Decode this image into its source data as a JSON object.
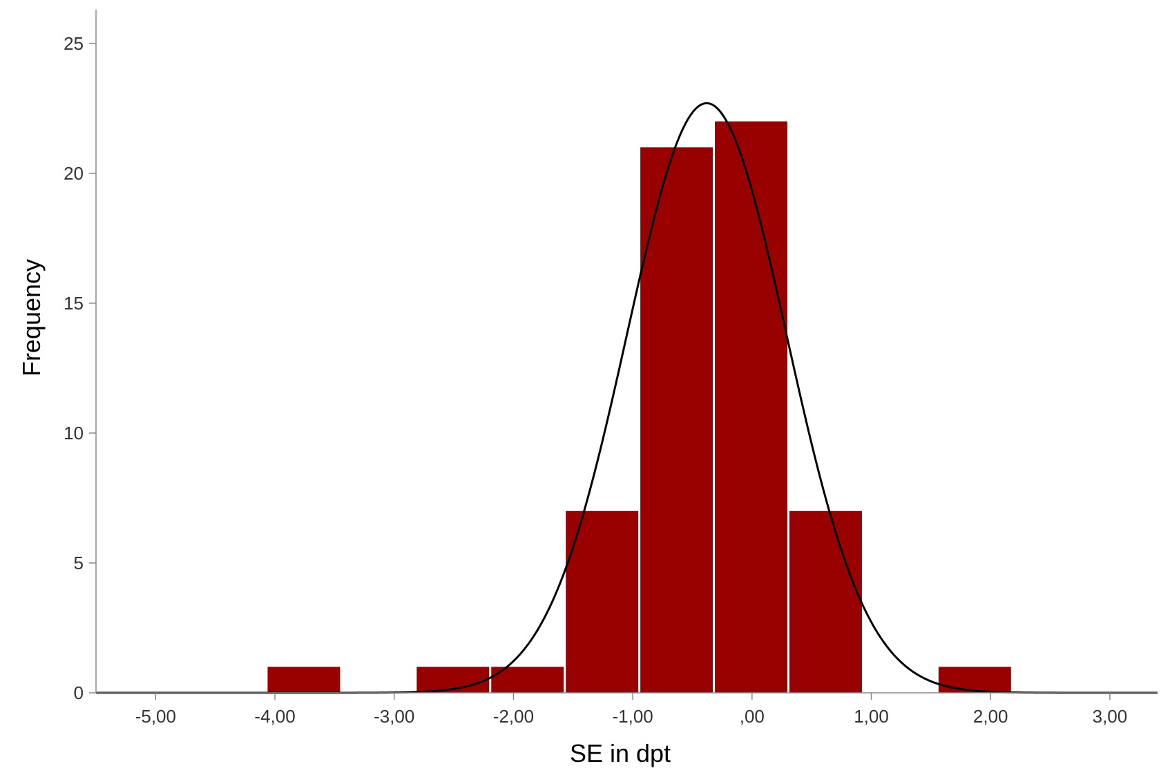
{
  "chart_data": {
    "type": "bar",
    "subtype": "histogram",
    "title": "",
    "xlabel": "SE in dpt",
    "ylabel": "Frequency",
    "xlim": [
      -5.5,
      3.4
    ],
    "ylim": [
      0,
      26.3
    ],
    "x_ticks": [
      {
        "value": -5,
        "label": "-5,00"
      },
      {
        "value": -4,
        "label": "-4,00"
      },
      {
        "value": -3,
        "label": "-3,00"
      },
      {
        "value": -2,
        "label": "-2,00"
      },
      {
        "value": -1,
        "label": "-1,00"
      },
      {
        "value": 0,
        "label": ",00"
      },
      {
        "value": 1,
        "label": "1,00"
      },
      {
        "value": 2,
        "label": "2,00"
      },
      {
        "value": 3,
        "label": "3,00"
      }
    ],
    "y_ticks": [
      {
        "value": 0,
        "label": "0"
      },
      {
        "value": 5,
        "label": "5"
      },
      {
        "value": 10,
        "label": "10"
      },
      {
        "value": 15,
        "label": "15"
      },
      {
        "value": 20,
        "label": "20"
      },
      {
        "value": 25,
        "label": "25"
      }
    ],
    "bin_width": 0.625,
    "bins": [
      {
        "start": -4.07,
        "end": -3.445,
        "count": 1
      },
      {
        "start": -2.82,
        "end": -2.195,
        "count": 1
      },
      {
        "start": -2.195,
        "end": -1.57,
        "count": 1
      },
      {
        "start": -1.57,
        "end": -0.945,
        "count": 7
      },
      {
        "start": -0.945,
        "end": -0.32,
        "count": 21
      },
      {
        "start": -0.32,
        "end": 0.305,
        "count": 22
      },
      {
        "start": 0.305,
        "end": 0.93,
        "count": 7
      },
      {
        "start": 1.555,
        "end": 2.18,
        "count": 1
      }
    ],
    "normal_curve": {
      "mean": -0.38,
      "sd": 0.67,
      "n": 61
    },
    "colors": {
      "bar": "#990000",
      "curve": "#000000",
      "axis": "#888888"
    },
    "grid": false,
    "legend": "none"
  }
}
